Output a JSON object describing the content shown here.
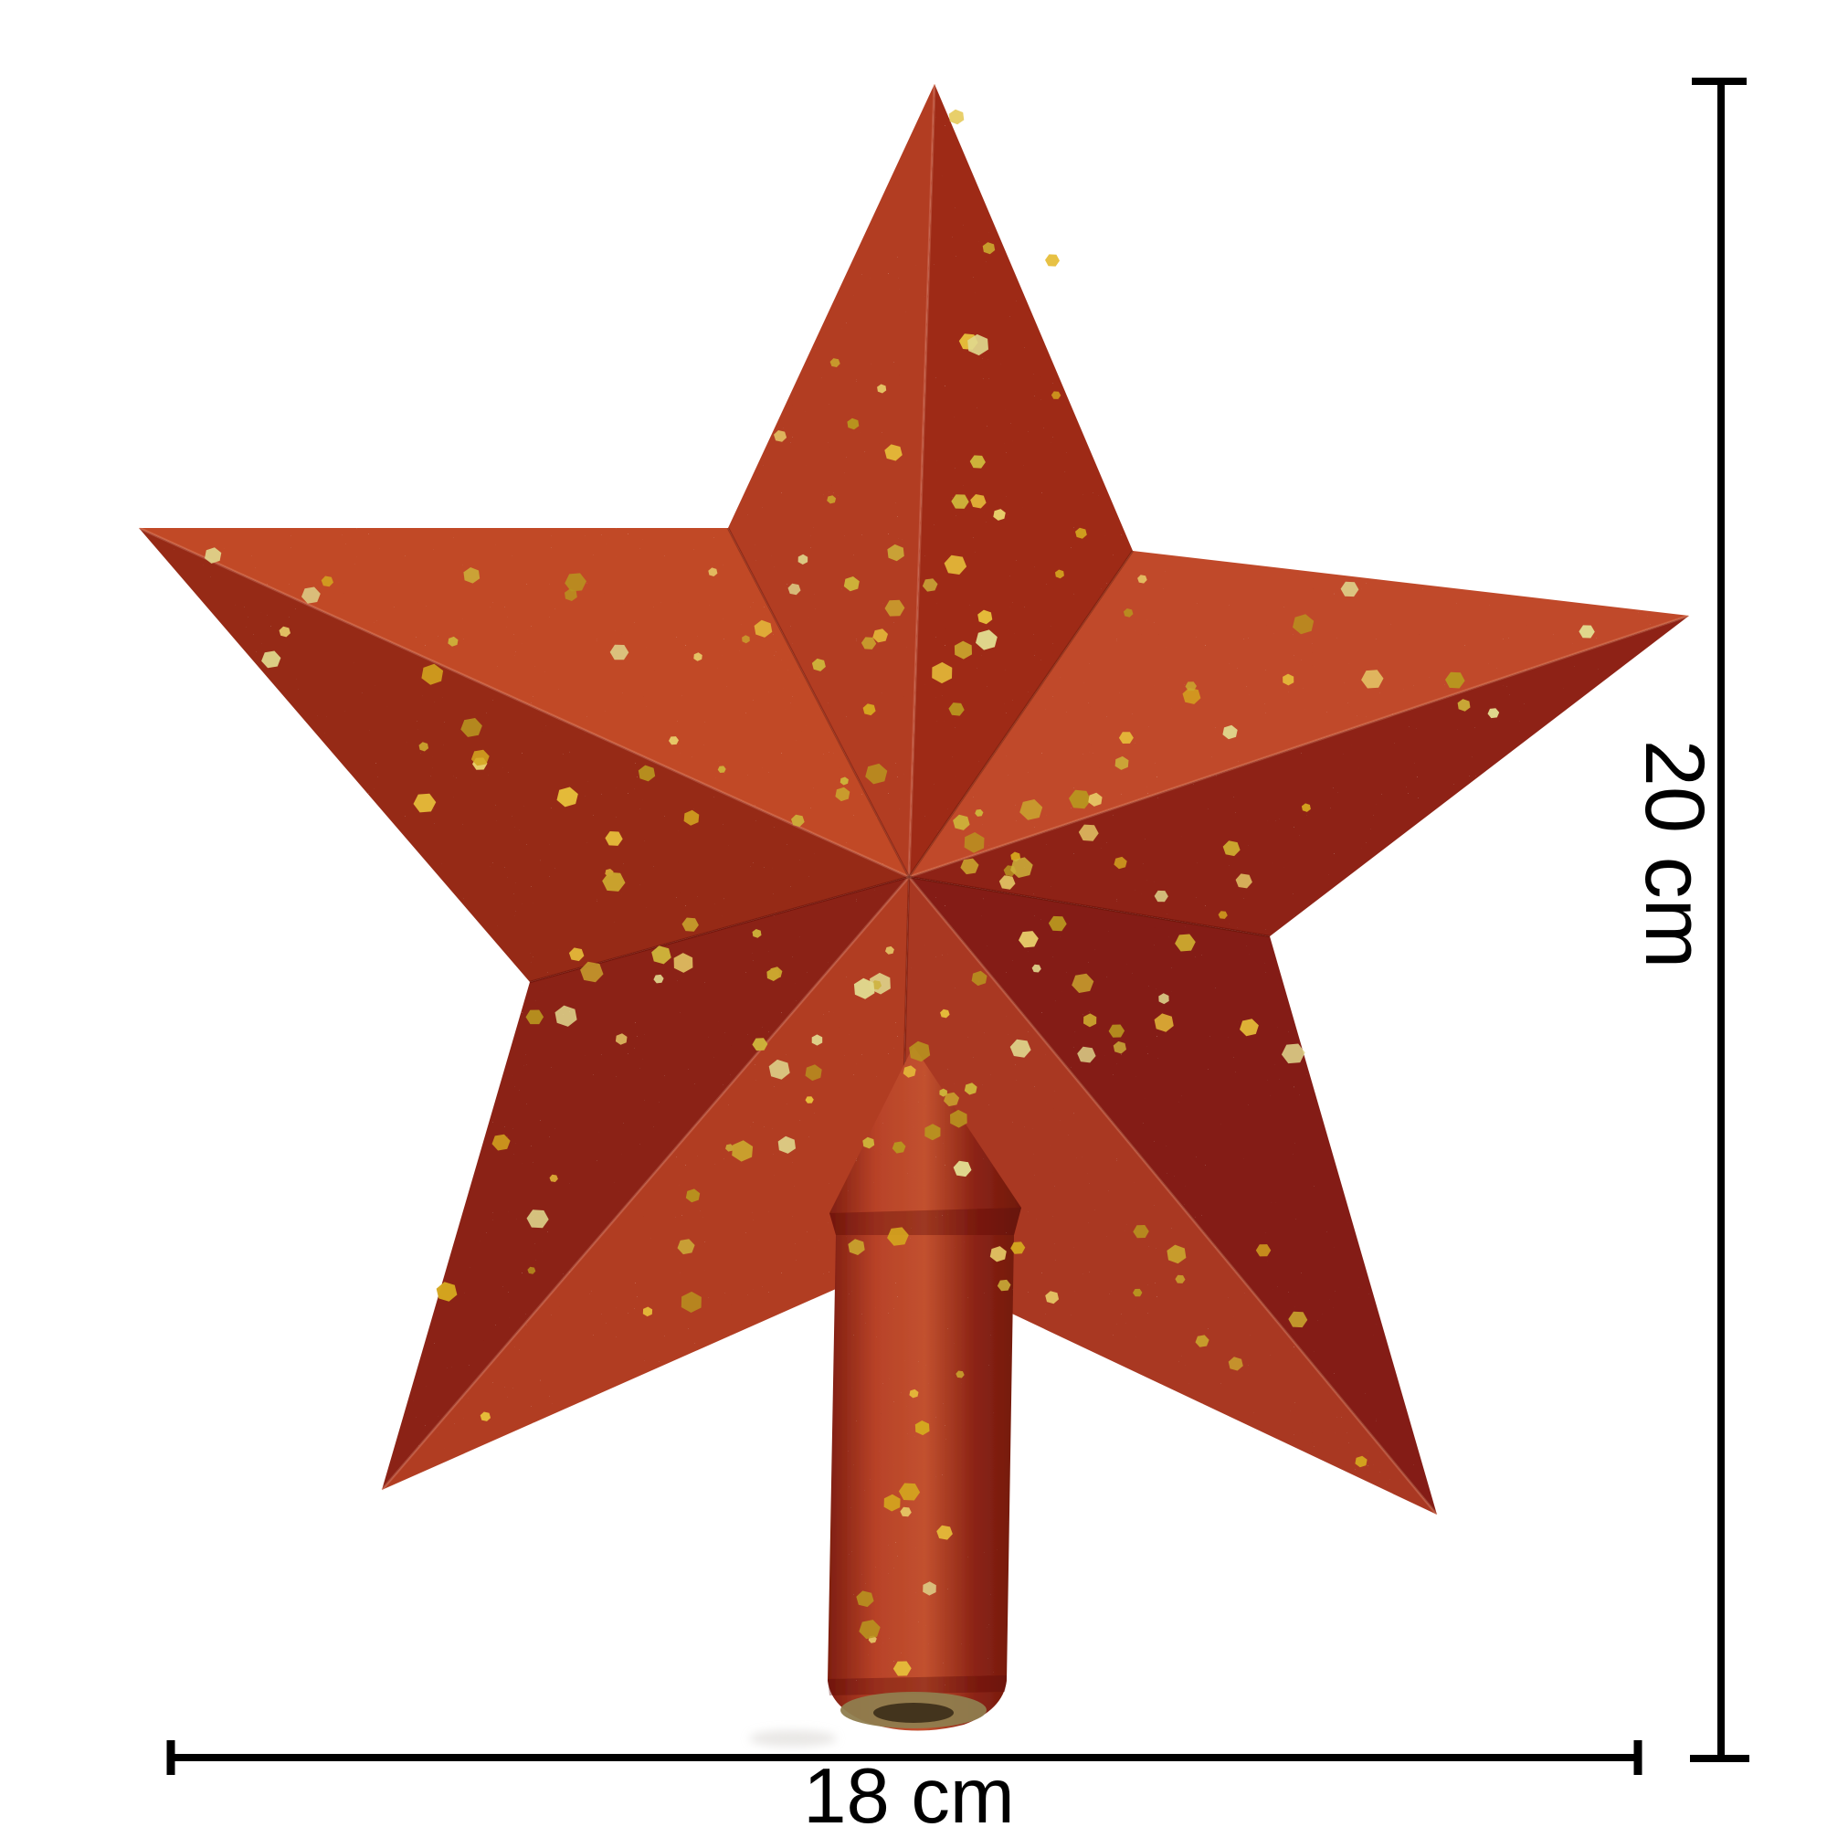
{
  "photo": {
    "subject": "Red glitter Christmas tree topper star with gold sequins",
    "background_color": "#ffffff"
  },
  "labels": {
    "height": "20 cm",
    "width": "18 cm"
  },
  "colors": {
    "line": "#000000",
    "label_text": "#000000",
    "star_facets": [
      "#b23c24",
      "#9e2c18",
      "#c04a2a",
      "#8e2213",
      "#841f12",
      "#a93721",
      "#8b2114",
      "#b13d24",
      "#c14928",
      "#962a19"
    ],
    "ridge_highlight": "rgba(255,190,160,0.22)",
    "valley_shadow": "rgba(70,5,0,0.30)",
    "sequin_palette": [
      "#e6be3a",
      "#d4a61f",
      "#caa52e",
      "#e8cf6a",
      "#b8941f",
      "#e0d98e",
      "#cdb23a"
    ],
    "peg_gradient": [
      "#7d1d0f",
      "#b84228",
      "#c2512f",
      "#8c2415",
      "#6f180c"
    ],
    "peg_ring_shade": "rgba(90,10,5,0.35)",
    "peg_opening_outer": "#8f7d4e",
    "peg_opening_inner": "#43341d",
    "shadow": "#d7d4d0"
  }
}
